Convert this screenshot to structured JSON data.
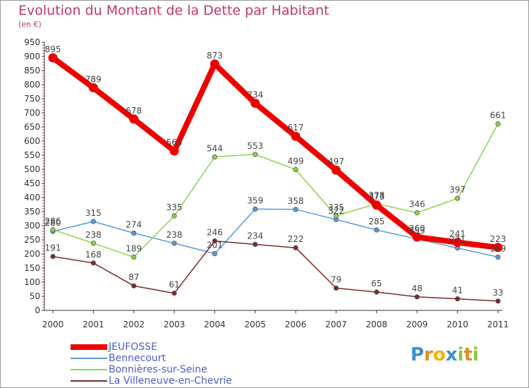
{
  "title": "Evolution du Montant de la Dette par Habitant",
  "subtitle": "(en €)",
  "logo": {
    "text": "Proxiti",
    "letters": [
      {
        "ch": "P",
        "color": "#3a8fd0"
      },
      {
        "ch": "r",
        "color": "#e58a1f"
      },
      {
        "ch": "o",
        "color": "#f2b200"
      },
      {
        "ch": "x",
        "color": "#3a8fd0"
      },
      {
        "ch": "i",
        "color": "#8cc63f"
      },
      {
        "ch": "t",
        "color": "#e58a1f"
      },
      {
        "ch": "i",
        "color": "#8cc63f"
      }
    ]
  },
  "chart_data": {
    "type": "line",
    "title": "Evolution du Montant de la Dette par Habitant",
    "ylabel": "(en €)",
    "x": [
      "2000",
      "2001",
      "2002",
      "2003",
      "2004",
      "2005",
      "2006",
      "2007",
      "2008",
      "2009",
      "2010",
      "2011"
    ],
    "ylim": [
      0,
      950
    ],
    "yticks": [
      0,
      50,
      100,
      150,
      200,
      250,
      300,
      350,
      400,
      450,
      500,
      550,
      600,
      650,
      700,
      750,
      800,
      850,
      900,
      950
    ],
    "grid": false,
    "legend_position": "bottom-left",
    "series": [
      {
        "name": "JEUFOSSE",
        "color": "#ee0000",
        "bold": true,
        "values": [
          895,
          789,
          678,
          565,
          873,
          734,
          617,
          497,
          373,
          260,
          241,
          223
        ]
      },
      {
        "name": "Bennecourt",
        "color": "#5b9bd5",
        "bold": false,
        "values": [
          280,
          315,
          274,
          238,
          201,
          359,
          358,
          322,
          285,
          253,
          221,
          189
        ]
      },
      {
        "name": "Bonnières-sur-Seine",
        "color": "#8ed24a",
        "bold": false,
        "values": [
          286,
          238,
          189,
          335,
          544,
          553,
          499,
          335,
          378,
          346,
          397,
          661
        ]
      },
      {
        "name": "La Villeneuve-en-Chevrie",
        "color": "#7a2a2a",
        "bold": false,
        "values": [
          191,
          168,
          87,
          61,
          246,
          234,
          222,
          79,
          65,
          48,
          41,
          33
        ]
      }
    ]
  }
}
